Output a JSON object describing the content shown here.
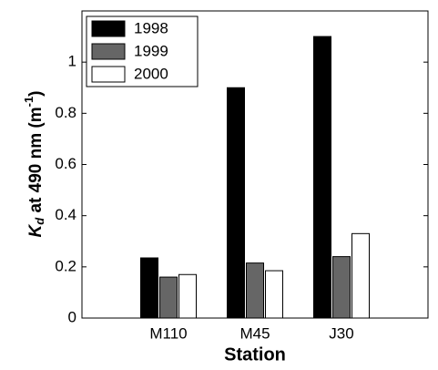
{
  "chart_data": {
    "type": "bar",
    "categories": [
      "M110",
      "M45",
      "J30"
    ],
    "series": [
      {
        "name": "1998",
        "color": "#000000",
        "values": [
          0.235,
          0.9,
          1.1
        ]
      },
      {
        "name": "1999",
        "color": "#666666",
        "values": [
          0.16,
          0.215,
          0.24
        ]
      },
      {
        "name": "2000",
        "color": "#ffffff",
        "values": [
          0.17,
          0.185,
          0.33
        ]
      }
    ],
    "xlabel": "Station",
    "ylabel": {
      "symbol": "K",
      "subscript": "d",
      "text": " at 490 nm (m",
      "superscript": "-1",
      "close": ")"
    },
    "ylim": [
      0,
      1.2
    ],
    "yticks": [
      0,
      0.2,
      0.4,
      0.6,
      0.8,
      1
    ],
    "legend": "upper left",
    "grid": false
  }
}
